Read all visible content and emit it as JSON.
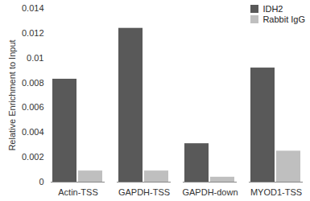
{
  "chart_data": {
    "type": "bar",
    "categories": [
      "Actin-TSS",
      "GAPDH-TSS",
      "GAPDH-down",
      "MYOD1-TSS"
    ],
    "series": [
      {
        "name": "IDH2",
        "color": "#595959",
        "values": [
          0.0083,
          0.0124,
          0.0031,
          0.0092
        ]
      },
      {
        "name": "Rabbit IgG",
        "color": "#bfbfbf",
        "values": [
          0.0009,
          0.0009,
          0.0004,
          0.0025
        ]
      }
    ],
    "y_label": "Relative Enrichment to Input",
    "ylim": [
      0,
      0.014
    ],
    "yticks": [
      0,
      0.002,
      0.004,
      0.006,
      0.008,
      0.01,
      0.012,
      0.014
    ],
    "grid": false,
    "legend": "top-right"
  }
}
